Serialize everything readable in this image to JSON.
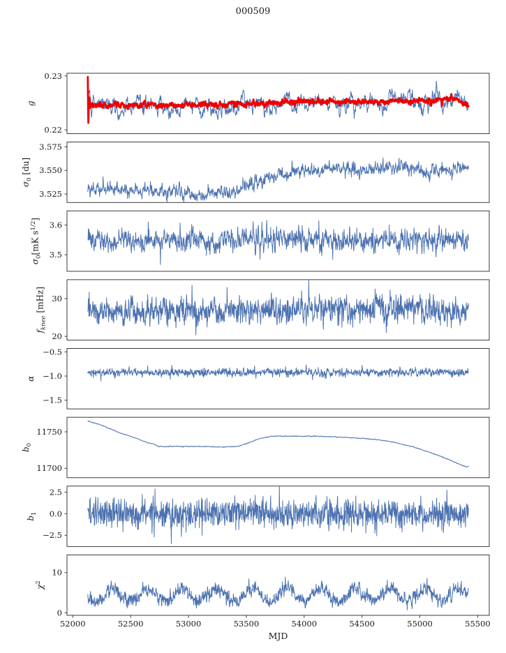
{
  "chart_data": {
    "type": "line",
    "title": "000509",
    "xlabel": "MJD",
    "xlim": [
      51950,
      55600
    ],
    "xticks": [
      {
        "v": 52000,
        "label": "52000"
      },
      {
        "v": 52500,
        "label": "52500"
      },
      {
        "v": 53000,
        "label": "53000"
      },
      {
        "v": 53500,
        "label": "53500"
      },
      {
        "v": 54000,
        "label": "54000"
      },
      {
        "v": 54500,
        "label": "54500"
      },
      {
        "v": 55000,
        "label": "55000"
      },
      {
        "v": 55500,
        "label": "55500"
      }
    ],
    "x_data_range": [
      52130,
      55420
    ],
    "n_points": 1400,
    "line_color": "#4c72b0",
    "highlight_color": "#ee0000",
    "panels": [
      {
        "name": "g",
        "ylabel": [
          {
            "t": "g",
            "i": true
          }
        ],
        "ylim": [
          0.2193,
          0.2305
        ],
        "yticks": [
          {
            "v": 0.22,
            "label": "0.22"
          },
          {
            "v": 0.23,
            "label": "0.23"
          }
        ],
        "series": [
          {
            "name": "g-raw",
            "color": "#4c72b0",
            "width": 1,
            "seed": 101,
            "rho": 0.85,
            "sigma": 0.00055,
            "trend": [
              [
                52130,
                0.2268
              ],
              [
                52160,
                0.2248
              ],
              [
                52400,
                0.2245
              ],
              [
                52800,
                0.2246
              ],
              [
                53200,
                0.2246
              ],
              [
                53500,
                0.2248
              ],
              [
                53800,
                0.2251
              ],
              [
                54000,
                0.2253
              ],
              [
                54200,
                0.2251
              ],
              [
                54500,
                0.2252
              ],
              [
                54800,
                0.2252
              ],
              [
                55000,
                0.2253
              ],
              [
                55250,
                0.2257
              ],
              [
                55350,
                0.2253
              ],
              [
                55420,
                0.2246
              ]
            ]
          },
          {
            "name": "g-smoothed",
            "color": "#ee0000",
            "width": 2.8,
            "seed": 102,
            "rho": 0.6,
            "sigma": 0.00022,
            "trend": [
              [
                52130,
                0.23
              ],
              [
                52134,
                0.2208
              ],
              [
                52141,
                0.2258
              ],
              [
                52150,
                0.2246
              ],
              [
                52300,
                0.2245
              ],
              [
                52700,
                0.2246
              ],
              [
                53100,
                0.2246
              ],
              [
                53400,
                0.2247
              ],
              [
                53700,
                0.225
              ],
              [
                54000,
                0.2253
              ],
              [
                54200,
                0.2252
              ],
              [
                54500,
                0.2251
              ],
              [
                54800,
                0.2252
              ],
              [
                55000,
                0.2253
              ],
              [
                55200,
                0.2256
              ],
              [
                55300,
                0.2257
              ],
              [
                55380,
                0.225
              ],
              [
                55420,
                0.2247
              ]
            ]
          }
        ]
      },
      {
        "name": "sigma0-du",
        "ylabel": [
          {
            "t": "σ",
            "i": true
          },
          {
            "t": "0",
            "sub": true
          },
          {
            "t": " [du]"
          }
        ],
        "ylim": [
          3.516,
          3.58
        ],
        "yticks": [
          {
            "v": 3.525,
            "label": "3.525"
          },
          {
            "v": 3.55,
            "label": "3.550"
          },
          {
            "v": 3.575,
            "label": "3.575"
          }
        ],
        "series": [
          {
            "name": "sigma0-du",
            "color": "#4c72b0",
            "width": 1,
            "seed": 201,
            "rho": 0.55,
            "sigma": 0.0031,
            "trend": [
              [
                52130,
                3.531
              ],
              [
                52350,
                3.529
              ],
              [
                52600,
                3.53
              ],
              [
                52850,
                3.528
              ],
              [
                53000,
                3.526
              ],
              [
                53100,
                3.523
              ],
              [
                53200,
                3.527
              ],
              [
                53350,
                3.529
              ],
              [
                53450,
                3.531
              ],
              [
                53600,
                3.538
              ],
              [
                53750,
                3.545
              ],
              [
                53900,
                3.548
              ],
              [
                54100,
                3.551
              ],
              [
                54300,
                3.552
              ],
              [
                54450,
                3.55
              ],
              [
                54600,
                3.551
              ],
              [
                54750,
                3.554
              ],
              [
                54900,
                3.552
              ],
              [
                55050,
                3.55
              ],
              [
                55200,
                3.551
              ],
              [
                55350,
                3.553
              ],
              [
                55420,
                3.556
              ]
            ]
          }
        ]
      },
      {
        "name": "sigma0-mks",
        "ylabel": [
          {
            "t": "σ",
            "i": true
          },
          {
            "t": "0",
            "sub": true
          },
          {
            "t": "[mK s"
          },
          {
            "t": "1/2",
            "sup": true
          },
          {
            "t": "]"
          }
        ],
        "ylim": [
          3.444,
          3.648
        ],
        "yticks": [
          {
            "v": 3.5,
            "label": "3.5"
          },
          {
            "v": 3.6,
            "label": "3.6"
          }
        ],
        "series": [
          {
            "name": "sigma0-mks",
            "color": "#4c72b0",
            "width": 1,
            "seed": 301,
            "rho": 0.45,
            "sigma": 0.017,
            "spike_p": 0.015,
            "spike_mul": 2.2,
            "trend": [
              [
                52130,
                3.552
              ],
              [
                53000,
                3.55
              ],
              [
                54000,
                3.552
              ],
              [
                55420,
                3.548
              ]
            ]
          }
        ]
      },
      {
        "name": "fknee",
        "ylabel": [
          {
            "t": "f",
            "i": true
          },
          {
            "t": "knee",
            "sub": true,
            "i": true
          },
          {
            "t": " [mHz]"
          }
        ],
        "ylim": [
          19,
          35
        ],
        "yticks": [
          {
            "v": 20,
            "label": "20"
          },
          {
            "v": 30,
            "label": "30"
          }
        ],
        "series": [
          {
            "name": "fknee",
            "color": "#4c72b0",
            "width": 1,
            "seed": 401,
            "rho": 0.3,
            "sigma": 1.7,
            "spike_p": 0.02,
            "spike_mul": 1.8,
            "trend": [
              [
                52130,
                26.5
              ],
              [
                53500,
                26.8
              ],
              [
                54500,
                27.0
              ],
              [
                55420,
                26.8
              ]
            ]
          }
        ]
      },
      {
        "name": "alpha",
        "ylabel": [
          {
            "t": "α",
            "i": true
          }
        ],
        "ylim": [
          -1.68,
          -0.43
        ],
        "yticks": [
          {
            "v": -0.5,
            "label": "−0.5"
          },
          {
            "v": -1.0,
            "label": "−1.0"
          },
          {
            "v": -1.5,
            "label": "−1.5"
          }
        ],
        "series": [
          {
            "name": "alpha",
            "color": "#4c72b0",
            "width": 1,
            "seed": 501,
            "rho": 0.3,
            "sigma": 0.04,
            "spike_p": 0.01,
            "spike_mul": 2,
            "trend": [
              [
                52130,
                -0.93
              ],
              [
                55420,
                -0.92
              ]
            ]
          }
        ]
      },
      {
        "name": "b0",
        "ylabel": [
          {
            "t": "b",
            "i": true
          },
          {
            "t": "0",
            "sub": true
          }
        ],
        "ylim": [
          11687,
          11770
        ],
        "yticks": [
          {
            "v": 11700,
            "label": "11700"
          },
          {
            "v": 11750,
            "label": "11750"
          }
        ],
        "series": [
          {
            "name": "b0",
            "color": "#4c72b0",
            "width": 1,
            "seed": 601,
            "rho": 0.5,
            "sigma": 0.25,
            "trend": [
              [
                52130,
                11765
              ],
              [
                52250,
                11759
              ],
              [
                52400,
                11749
              ],
              [
                52550,
                11741
              ],
              [
                52650,
                11735
              ],
              [
                52710,
                11733
              ],
              [
                52730,
                11730
              ],
              [
                52900,
                11730
              ],
              [
                53100,
                11730
              ],
              [
                53300,
                11729
              ],
              [
                53430,
                11730
              ],
              [
                53520,
                11735
              ],
              [
                53620,
                11741
              ],
              [
                53720,
                11744
              ],
              [
                53900,
                11744
              ],
              [
                54100,
                11744
              ],
              [
                54300,
                11743
              ],
              [
                54500,
                11741
              ],
              [
                54650,
                11739
              ],
              [
                54800,
                11735
              ],
              [
                54950,
                11729
              ],
              [
                55100,
                11721
              ],
              [
                55250,
                11712
              ],
              [
                55350,
                11705
              ],
              [
                55400,
                11702
              ],
              [
                55420,
                11703
              ]
            ]
          }
        ]
      },
      {
        "name": "b1",
        "ylabel": [
          {
            "t": "b",
            "i": true
          },
          {
            "t": "1",
            "sub": true
          }
        ],
        "ylim": [
          -3.8,
          3.2
        ],
        "yticks": [
          {
            "v": -2.5,
            "label": "−2.5"
          },
          {
            "v": 0,
            "label": "0.0"
          },
          {
            "v": 2.5,
            "label": "2.5"
          }
        ],
        "series": [
          {
            "name": "b1",
            "color": "#4c72b0",
            "width": 1,
            "seed": 701,
            "rho": 0.1,
            "sigma": 0.8,
            "spike_p": 0.012,
            "spike_mul": 2.5,
            "trend": [
              [
                52130,
                0.0
              ],
              [
                55420,
                0.0
              ]
            ]
          }
        ]
      },
      {
        "name": "chi2",
        "ylabel": [
          {
            "t": "χ",
            "i": true
          },
          {
            "t": "2",
            "sup": true
          }
        ],
        "ylim": [
          -0.6,
          14.4
        ],
        "yticks": [
          {
            "v": 0,
            "label": "0"
          },
          {
            "v": 10,
            "label": "10"
          }
        ],
        "series": [
          {
            "name": "chi2",
            "color": "#4c72b0",
            "width": 1,
            "seed": 801,
            "rho": 0.35,
            "sigma": 0.85,
            "min": 0.4,
            "sin": {
              "amp": 1.6,
              "period": 300,
              "phase": -3.0
            },
            "trend": [
              [
                52130,
                4.4
              ],
              [
                55420,
                4.6
              ]
            ]
          }
        ]
      }
    ]
  }
}
